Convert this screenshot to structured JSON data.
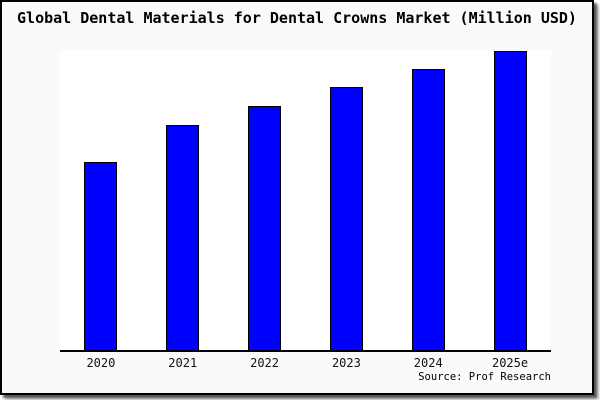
{
  "window": {
    "background": "#ffffff"
  },
  "figure": {
    "background": "#fafafa",
    "border_color": "#000000",
    "plot_background": "#ffffff",
    "axis_color": "#000000"
  },
  "chart_data": {
    "type": "bar",
    "title": "Global Dental Materials for Dental Crowns Market (Million USD)",
    "categories": [
      "2020",
      "2021",
      "2022",
      "2023",
      "2024",
      "2025e"
    ],
    "values": [
      62.7,
      74.9,
      81.3,
      87.7,
      93.6,
      99.7
    ],
    "value_unit": "percent of plot height; y-axis is unlabeled (no ticks, no gridlines), values are relative bar heights",
    "xlabel": "",
    "ylabel": "",
    "y_axis_visible": false,
    "gridlines": false,
    "legend_position": "none",
    "bar_color": "#0000ff",
    "bar_border_color": "#000000",
    "source": "Source: Prof Research"
  }
}
